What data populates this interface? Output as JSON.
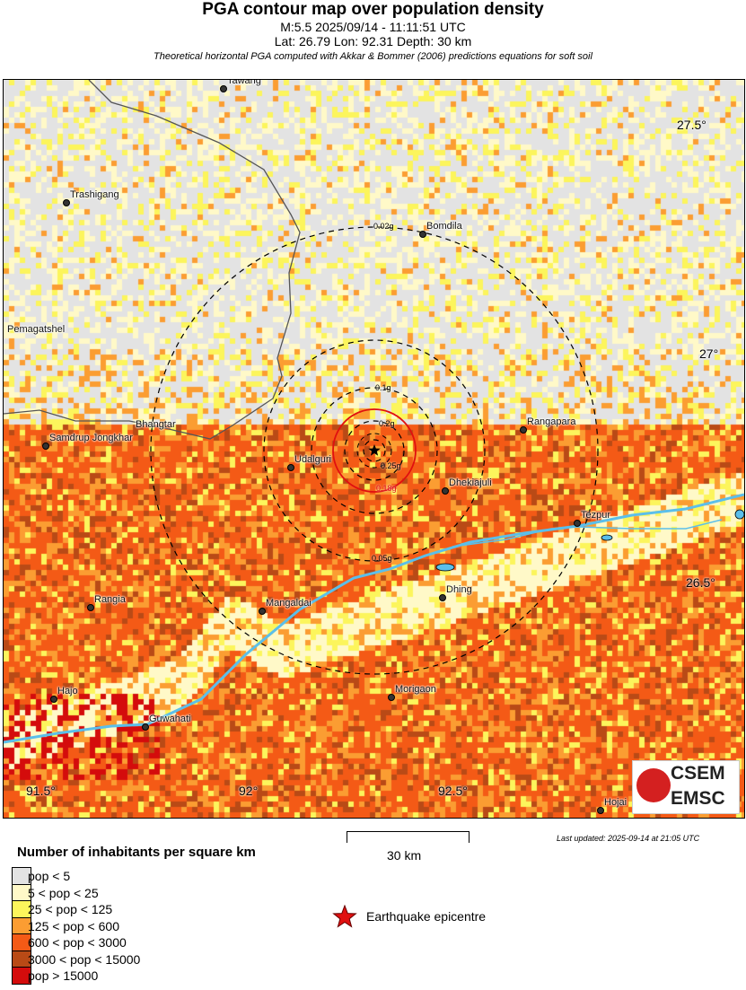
{
  "header": {
    "title": "PGA contour map over population density",
    "event": "M:5.5 2025/09/14 - 11:11:51 UTC",
    "location": "Lat: 26.79 Lon: 92.31 Depth: 30 km",
    "subtitle": "Theoretical horizontal PGA computed with Akkar & Bommer (2006) predictions equations for soft soil"
  },
  "map": {
    "lat_ticks": [
      "27.5°",
      "27°",
      "26.5°"
    ],
    "lon_ticks": [
      "91.5°",
      "92°",
      "92.5°"
    ],
    "contours": [
      {
        "label": "0.25g",
        "color": "#000000",
        "style": "dashed"
      },
      {
        "label": "0.2g",
        "color": "#000000",
        "style": "dashed"
      },
      {
        "label": "0.18g",
        "color": "#e01010",
        "style": "solid"
      },
      {
        "label": "0.1g",
        "color": "#000000",
        "style": "dashed"
      },
      {
        "label": "0.05g",
        "color": "#000000",
        "style": "dashed"
      },
      {
        "label": "0.02g",
        "color": "#000000",
        "style": "dashed"
      }
    ],
    "cities": [
      "Tawang",
      "Trashigang",
      "Bomdila",
      "Pemagatshel",
      "Bhangtar",
      "Samdrup Jongkhar",
      "Udalguri",
      "Rangapara",
      "Dhekiajuli",
      "Tezpur",
      "Mangaldai",
      "Dhing",
      "Rangia",
      "Hajo",
      "Morigaon",
      "Guwahati",
      "Hojai"
    ],
    "logo": {
      "line1": "CSEM",
      "line2": "EMSC"
    },
    "river_color": "#5bbfea",
    "epicentre_icon": "star-icon"
  },
  "legend": {
    "title": "Number of inhabitants per square km",
    "items": [
      {
        "label": "pop < 5",
        "color": "#e3e3e3"
      },
      {
        "label": "5 < pop < 25",
        "color": "#fff9c8"
      },
      {
        "label": "25 < pop < 125",
        "color": "#fcf55c"
      },
      {
        "label": "125 < pop < 600",
        "color": "#fb9d32"
      },
      {
        "label": "600 < pop < 3000",
        "color": "#f45a16"
      },
      {
        "label": "3000 < pop < 15000",
        "color": "#b94a16"
      },
      {
        "label": "pop > 15000",
        "color": "#d40c0c"
      }
    ],
    "epicentre_label": "Earthquake epicentre"
  },
  "scale_bar": {
    "label": "30 km"
  },
  "last_updated": "Last updated: 2025-09-14 at 21:05 UTC"
}
